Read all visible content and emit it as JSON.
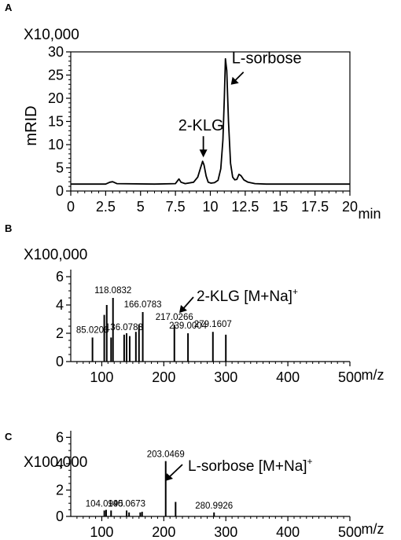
{
  "chart_data": [
    {
      "panel": "A",
      "type": "line",
      "multiplier_label": "X10,000",
      "ylabel": "mRID",
      "xunit": "min",
      "xlim": [
        0,
        20
      ],
      "ylim": [
        0,
        30
      ],
      "x_ticks": [
        "0",
        "2.5",
        "5",
        "7.5",
        "10",
        "12.5",
        "15",
        "17.5",
        "20"
      ],
      "y_ticks": [
        "0",
        "5",
        "10",
        "15",
        "20",
        "25",
        "30"
      ],
      "x_tick_values": [
        0,
        2.5,
        5,
        7.5,
        10,
        12.5,
        15,
        17.5,
        20
      ],
      "y_tick_values": [
        0,
        5,
        10,
        15,
        20,
        25,
        30
      ],
      "series": [
        {
          "x": [
            0.0,
            2.5,
            2.8,
            3.0,
            3.3,
            6.0,
            7.5,
            7.75,
            7.9,
            8.2,
            8.8,
            9.1,
            9.3,
            9.45,
            9.55,
            9.7,
            9.85,
            10.05,
            10.3,
            10.55,
            10.75,
            10.9,
            11.0,
            11.08,
            11.18,
            11.3,
            11.45,
            11.6,
            11.75,
            11.9,
            12.05,
            12.2,
            12.4,
            12.7,
            13.2,
            14.0,
            15.0,
            17.5,
            20.0
          ],
          "y": [
            1.5,
            1.5,
            1.9,
            2.0,
            1.6,
            1.5,
            1.6,
            2.6,
            1.9,
            1.6,
            1.9,
            3.0,
            5.0,
            6.4,
            5.6,
            3.2,
            1.9,
            1.7,
            1.8,
            2.3,
            4.8,
            11.0,
            20.0,
            28.5,
            26.0,
            15.0,
            6.0,
            3.0,
            2.4,
            2.5,
            3.6,
            3.3,
            2.4,
            1.9,
            1.6,
            1.5,
            1.5,
            1.5,
            1.5
          ]
        }
      ],
      "annotations": [
        {
          "text": "2-KLG",
          "x": 9.5,
          "y": 6.4
        },
        {
          "text": "L-sorbose",
          "x": 11.25,
          "y": 27.0
        }
      ]
    },
    {
      "panel": "B",
      "type": "bar",
      "multiplier_label": "X100,000",
      "xunit": "m/z",
      "xlim": [
        50,
        500
      ],
      "ylim": [
        0,
        6.5
      ],
      "x_ticks": [
        "100",
        "200",
        "300",
        "400",
        "500"
      ],
      "y_ticks": [
        "0",
        "2",
        "4",
        "6"
      ],
      "x_tick_values": [
        100,
        200,
        300,
        400,
        500
      ],
      "y_tick_values": [
        0,
        2,
        4,
        6
      ],
      "peaks": {
        "x": [
          85.0206,
          104,
          108,
          115,
          118.0832,
          136.0783,
          140,
          145,
          155,
          160,
          166.0783,
          217.0266,
          239.0004,
          279.1607,
          300
        ],
        "y": [
          1.7,
          3.3,
          4.0,
          1.7,
          4.5,
          1.9,
          2.0,
          1.8,
          2.1,
          2.6,
          3.5,
          2.6,
          2.0,
          2.1,
          1.9
        ]
      },
      "peak_labels": [
        {
          "text": "85.0206",
          "x": 85.0206
        },
        {
          "text": "118.0832",
          "x": 118.0832
        },
        {
          "text": "136.0783",
          "x": 136.0783
        },
        {
          "text": "166.0783",
          "x": 166.0783
        },
        {
          "text": "217.0266",
          "x": 217.0266
        },
        {
          "text": "239.0004",
          "x": 239.0004
        },
        {
          "text": "279.1607",
          "x": 279.1607
        }
      ],
      "annotation": {
        "main": "2-KLG [M+Na]",
        "sup": "+"
      }
    },
    {
      "panel": "C",
      "type": "bar",
      "multiplier_label": "X100,000",
      "xunit": "m/z",
      "xlim": [
        50,
        500
      ],
      "ylim": [
        0,
        6.5
      ],
      "x_ticks": [
        "100",
        "200",
        "300",
        "400",
        "500"
      ],
      "y_ticks": [
        "0",
        "2",
        "4",
        "6"
      ],
      "x_tick_values": [
        100,
        200,
        300,
        400,
        500
      ],
      "y_tick_values": [
        0,
        2,
        4,
        6
      ],
      "peaks": {
        "x": [
          104.0995,
          107,
          115,
          140.0673,
          144,
          162,
          165,
          203.0469,
          219,
          280.9926
        ],
        "y": [
          0.45,
          0.5,
          0.45,
          0.45,
          0.3,
          0.3,
          0.35,
          4.2,
          1.1,
          0.3
        ]
      },
      "peak_labels": [
        {
          "text": "104.0995",
          "x": 104.0995
        },
        {
          "text": "140.0673",
          "x": 140.0673
        },
        {
          "text": "203.0469",
          "x": 203.0469
        },
        {
          "text": "280.9926",
          "x": 280.9926
        }
      ],
      "annotation": {
        "main": "L-sorbose [M+Na]",
        "sup": "+"
      }
    }
  ]
}
